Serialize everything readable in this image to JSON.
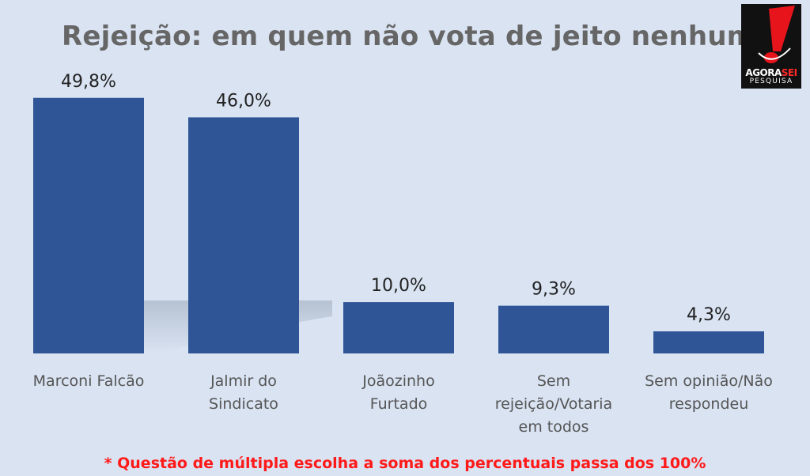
{
  "title": "Rejeição: em quem não vota de jeito nenhum",
  "logo": {
    "name_part1": "AGORA",
    "name_part2": "SEI",
    "subtitle": "PESQUISA"
  },
  "footnote": "* Questão de múltipla escolha a soma dos percentuais passa dos 100%",
  "colors": {
    "bar": "#2f5597",
    "background": "#d9e3f2",
    "title": "#666666",
    "footnote": "#ff1a1a"
  },
  "chart_data": {
    "type": "bar",
    "categories": [
      [
        "Marconi Falcão"
      ],
      [
        "Jalmir do",
        "Sindicato"
      ],
      [
        "Joãozinho",
        "Furtado"
      ],
      [
        "Sem",
        "rejeição/Votaria",
        "em todos"
      ],
      [
        "Sem opinião/Não",
        "respondeu"
      ]
    ],
    "values": [
      49.8,
      46.0,
      10.0,
      9.3,
      4.3
    ],
    "data_labels": [
      "49,8%",
      "46,0%",
      "10,0%",
      "9,3%",
      "4,3%"
    ],
    "title": "Rejeição: em quem não vota de jeito nenhum",
    "xlabel": "",
    "ylabel": "",
    "ylim": [
      0,
      55
    ],
    "grid": false,
    "legend": "none"
  }
}
